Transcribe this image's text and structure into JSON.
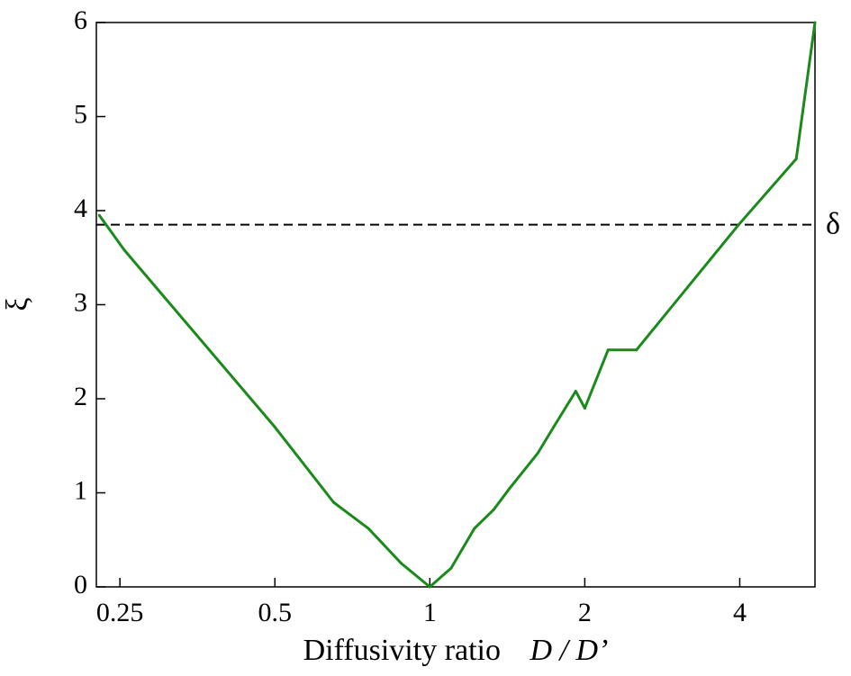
{
  "chart_data": {
    "type": "line",
    "title": "",
    "xlabel": {
      "prefix": "Diffusivity ratio",
      "variable": "D / D’"
    },
    "ylabel": "ξ",
    "x_scale": "log2",
    "xlim": [
      0.225,
      5.6
    ],
    "ylim": [
      0,
      6
    ],
    "x_ticks": [
      {
        "value": 0.25,
        "label": "0.25"
      },
      {
        "value": 0.5,
        "label": "0.5"
      },
      {
        "value": 1,
        "label": "1"
      },
      {
        "value": 2,
        "label": "2"
      },
      {
        "value": 4,
        "label": "4"
      }
    ],
    "y_ticks": [
      {
        "value": 0,
        "label": "0"
      },
      {
        "value": 1,
        "label": "1"
      },
      {
        "value": 2,
        "label": "2"
      },
      {
        "value": 3,
        "label": "3"
      },
      {
        "value": 4,
        "label": "4"
      },
      {
        "value": 5,
        "label": "5"
      },
      {
        "value": 6,
        "label": "6"
      }
    ],
    "grid": false,
    "series": [
      {
        "color": "#1a8a1a",
        "style": "solid",
        "points": [
          [
            0.228,
            3.95
          ],
          [
            0.255,
            3.58
          ],
          [
            0.5,
            1.7
          ],
          [
            0.65,
            0.9
          ],
          [
            0.76,
            0.62
          ],
          [
            0.88,
            0.25
          ],
          [
            1.0,
            0.0
          ],
          [
            1.1,
            0.2
          ],
          [
            1.22,
            0.62
          ],
          [
            1.33,
            0.82
          ],
          [
            1.43,
            1.05
          ],
          [
            1.62,
            1.42
          ],
          [
            1.74,
            1.7
          ],
          [
            1.92,
            2.08
          ],
          [
            2.0,
            1.9
          ],
          [
            2.22,
            2.52
          ],
          [
            2.52,
            2.52
          ],
          [
            3.98,
            3.85
          ],
          [
            5.15,
            4.55
          ],
          [
            5.6,
            6.0
          ]
        ]
      }
    ],
    "reference_lines": [
      {
        "label": "δ",
        "orientation": "horizontal",
        "y": 3.85,
        "color": "#000000",
        "style": "dashed"
      }
    ]
  }
}
